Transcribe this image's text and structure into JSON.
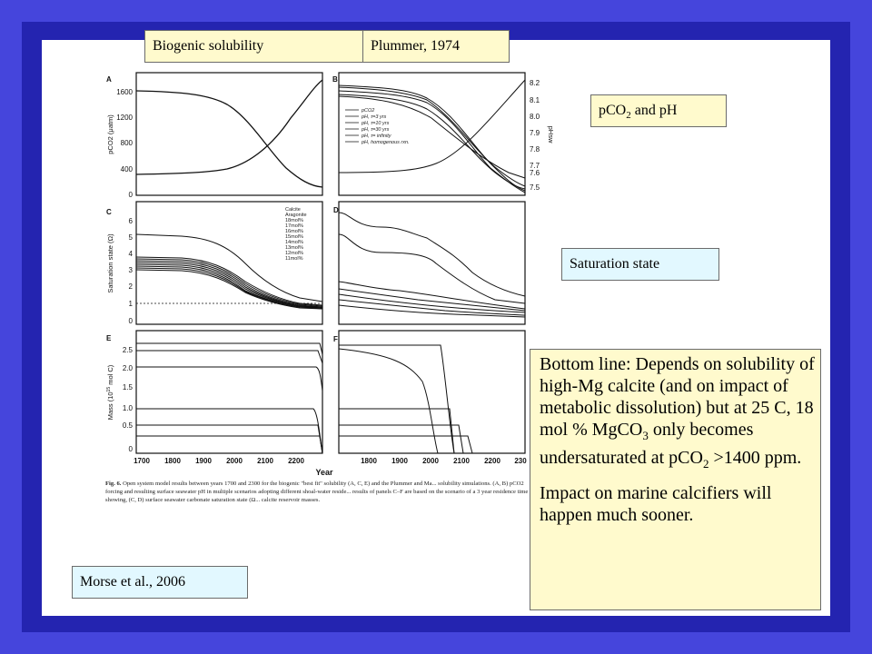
{
  "labels": {
    "biogenic": "Biogenic solubility",
    "plummer": "Plummer, 1974",
    "pco2_ph_main": "pCO",
    "pco2_ph_sub": "2",
    "pco2_ph_tail": " and pH",
    "saturation": "Saturation state",
    "morse": "Morse et al., 2006"
  },
  "note": {
    "p1_a": "Bottom line: Depends on solubility of high-Mg calcite (and on impact of metabolic dissolution) but at 25 C, 18 mol % MgCO",
    "p1_sub1": "3",
    "p1_b": " only becomes undersaturated at pCO",
    "p1_sub2": "2",
    "p1_c": " >1400 ppm.",
    "p2": "Impact on marine calcifiers will happen much sooner."
  },
  "figure": {
    "panel_letters": [
      "A",
      "B",
      "C",
      "D",
      "E",
      "F"
    ],
    "x_label": "Year",
    "x_ticks_left": [
      "1700",
      "1800",
      "1900",
      "2000",
      "2100",
      "2200"
    ],
    "x_ticks_right": [
      "1800",
      "1900",
      "2000",
      "2100",
      "2200",
      "230"
    ],
    "a_ylabel": "pCO2 (μatm)",
    "a_yticks": [
      "1600",
      "1200",
      "800",
      "400",
      "0"
    ],
    "b_ylabel": "pHsw",
    "b_yticks": [
      "8.2",
      "8.1",
      "8.0",
      "7.9",
      "7.8",
      "7.7",
      "7.6",
      "7.5"
    ],
    "c_ylabel": "Saturation state (Ω)",
    "c_yticks": [
      "6",
      "5",
      "4",
      "3",
      "2",
      "1",
      "0"
    ],
    "e_ylabel": "Mass (10",
    "e_ylabel_sup": "15",
    "e_ylabel_tail": " mol C)",
    "e_yticks": [
      "2.5",
      "2.0",
      "1.5",
      "1.0",
      "0.5",
      "0"
    ],
    "b_legend": [
      "pCO2",
      "pH, τ=3 yrs",
      "pH, τ=10 yrs",
      "pH, τ=30 yrs",
      "pH, τ= infinity",
      "pH, homogenous rxn."
    ],
    "c_legend": [
      "Calcite",
      "Aragonite",
      "18mol%",
      "17mol%",
      "16mol%",
      "15mol%",
      "14mol%",
      "13mol%",
      "12mol%",
      "11mol%"
    ],
    "caption_lead": "Fig. 6.",
    "caption": "Open system model results between years 1700 and 2300 for the biogenic \"best fit\" solubility (A, C, E) and the Plummer and Ma... solubility simulations. (A, B) pCO2 forcing and resulting surface seawater pH in multiple scenarios adopting different shoal-water reside... results of panels C–F are based on the scenario of a 3 year residence time showing, (C, D) surface seawater carbonate saturation state (Ω... calcite reservoir masses."
  }
}
